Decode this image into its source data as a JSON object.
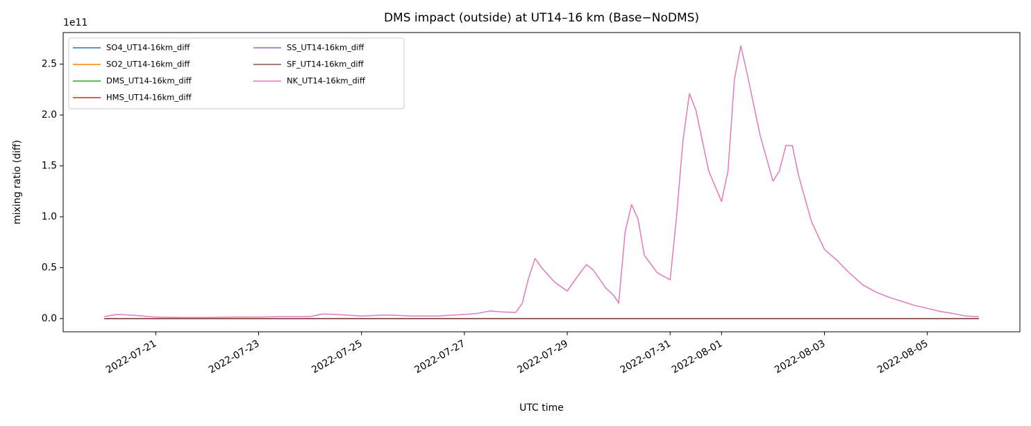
{
  "chart_data": {
    "type": "line",
    "title": "DMS impact (outside) at UT14–16 km (Base−NoDMS)",
    "x_label": "UTC time",
    "y_label": "mixing ratio (diff)",
    "y_offset_label": "1e11",
    "legend": "upper left",
    "legend_columns": 2,
    "grid": false,
    "xlim": [
      "2022-07-19 04:48",
      "2022-08-06 19:12"
    ],
    "xticks": [
      "2022-07-21",
      "2022-07-23",
      "2022-07-25",
      "2022-07-27",
      "2022-07-29",
      "2022-07-31",
      "2022-08-01",
      "2022-08-03",
      "2022-08-05"
    ],
    "ylim": [
      -0.13,
      2.81
    ],
    "yticks": [
      {
        "value": 0,
        "label": "0.0"
      },
      {
        "value": 0.5,
        "label": "0.5"
      },
      {
        "value": 1,
        "label": "1.0"
      },
      {
        "value": 1.5,
        "label": "1.5"
      },
      {
        "value": 2,
        "label": "2.0"
      },
      {
        "value": 2.5,
        "label": "2.5"
      }
    ],
    "x": [
      "2022-07-20 00:00",
      "2022-07-20 06:00",
      "2022-07-20 12:00",
      "2022-07-20 18:00",
      "2022-07-21 00:00",
      "2022-07-21 12:00",
      "2022-07-22 00:00",
      "2022-07-22 12:00",
      "2022-07-23 00:00",
      "2022-07-23 12:00",
      "2022-07-24 00:00",
      "2022-07-24 06:00",
      "2022-07-24 12:00",
      "2022-07-25 00:00",
      "2022-07-25 12:00",
      "2022-07-26 00:00",
      "2022-07-26 12:00",
      "2022-07-27 00:00",
      "2022-07-27 06:00",
      "2022-07-27 12:00",
      "2022-07-27 18:00",
      "2022-07-28 00:00",
      "2022-07-28 03:00",
      "2022-07-28 06:00",
      "2022-07-28 09:00",
      "2022-07-28 12:00",
      "2022-07-28 18:00",
      "2022-07-29 00:00",
      "2022-07-29 06:00",
      "2022-07-29 09:00",
      "2022-07-29 12:00",
      "2022-07-29 18:00",
      "2022-07-29 22:00",
      "2022-07-30 00:00",
      "2022-07-30 03:00",
      "2022-07-30 06:00",
      "2022-07-30 09:00",
      "2022-07-30 12:00",
      "2022-07-30 18:00",
      "2022-07-31 00:00",
      "2022-07-31 03:00",
      "2022-07-31 06:00",
      "2022-07-31 09:00",
      "2022-07-31 12:00",
      "2022-07-31 18:00",
      "2022-08-01 00:00",
      "2022-08-01 03:00",
      "2022-08-01 06:00",
      "2022-08-01 09:00",
      "2022-08-01 12:00",
      "2022-08-01 18:00",
      "2022-08-02 00:00",
      "2022-08-02 03:00",
      "2022-08-02 06:00",
      "2022-08-02 09:00",
      "2022-08-02 12:00",
      "2022-08-02 18:00",
      "2022-08-03 00:00",
      "2022-08-03 06:00",
      "2022-08-03 12:00",
      "2022-08-03 18:00",
      "2022-08-04 00:00",
      "2022-08-04 06:00",
      "2022-08-04 12:00",
      "2022-08-04 18:00",
      "2022-08-05 00:00",
      "2022-08-05 06:00",
      "2022-08-05 12:00",
      "2022-08-05 18:00",
      "2022-08-06 00:00"
    ],
    "series": [
      {
        "name": "SO4_UT14-16km_diff",
        "color": "#1f77b4",
        "values": [
          0,
          0,
          0,
          0,
          0,
          0,
          0,
          0,
          0,
          0,
          0,
          0,
          0,
          0,
          0,
          0,
          0,
          0,
          0,
          0,
          0,
          0,
          0,
          0,
          0,
          0,
          0,
          0,
          0,
          0,
          0,
          0,
          0,
          0,
          0,
          0,
          0,
          0,
          0,
          0,
          0,
          0,
          0,
          0,
          0,
          0,
          0,
          0,
          0,
          0,
          0,
          0,
          0,
          0,
          0,
          0,
          0,
          0,
          0,
          0,
          0,
          0,
          0,
          0,
          0,
          0,
          0,
          0,
          0,
          0
        ]
      },
      {
        "name": "SO2_UT14-16km_diff",
        "color": "#ff7f0e",
        "values": [
          0,
          0,
          0,
          0,
          0,
          0,
          0,
          0,
          0,
          0,
          0,
          0,
          0,
          0,
          0,
          0,
          0,
          0,
          0,
          0,
          0,
          0,
          0,
          0,
          0,
          0,
          0,
          0,
          0,
          0,
          0,
          0,
          0,
          0,
          0,
          0,
          0,
          0,
          0,
          0,
          0,
          0,
          0,
          0,
          0,
          0,
          0,
          0,
          0,
          0,
          0,
          0,
          0,
          0,
          0,
          0,
          0,
          0,
          0,
          0,
          0,
          0,
          0,
          0,
          0,
          0,
          0,
          0,
          0,
          0
        ]
      },
      {
        "name": "DMS_UT14-16km_diff",
        "color": "#2ca02c",
        "values": [
          0,
          0,
          0,
          0,
          0,
          0,
          0,
          0,
          0,
          0,
          0,
          0,
          0,
          0,
          0,
          0,
          0,
          0,
          0,
          0,
          0,
          0,
          0,
          0,
          0,
          0,
          0,
          0,
          0,
          0,
          0,
          0,
          0,
          0,
          0,
          0,
          0,
          0,
          0,
          0,
          0,
          0,
          0,
          0,
          0,
          0,
          0,
          0,
          0,
          0,
          0,
          0,
          0,
          0,
          0,
          0,
          0,
          0,
          0,
          0,
          0,
          0,
          0,
          0,
          0,
          0,
          0,
          0,
          0,
          0
        ]
      },
      {
        "name": "HMS_UT14-16km_diff",
        "color": "#d62728",
        "values": [
          0,
          0,
          0,
          0,
          0,
          0,
          0,
          0,
          0,
          0,
          0,
          0,
          0,
          0,
          0,
          0,
          0,
          0,
          0,
          0,
          0,
          0,
          0,
          0,
          0,
          0,
          0,
          0,
          0,
          0,
          0,
          0,
          0,
          0,
          0,
          0,
          0,
          0,
          0,
          0,
          0,
          0,
          0,
          0,
          0,
          0,
          0,
          0,
          0,
          0,
          0,
          0,
          0,
          0,
          0,
          0,
          0,
          0,
          0,
          0,
          0,
          0,
          0,
          0,
          0,
          0,
          0,
          0,
          0,
          0
        ]
      },
      {
        "name": "SS_UT14-16km_diff",
        "color": "#9467bd",
        "values": [
          0,
          0,
          0,
          0,
          0,
          0,
          0,
          0,
          0,
          0,
          0,
          0,
          0,
          0,
          0,
          0,
          0,
          0,
          0,
          0,
          0,
          0,
          0,
          0,
          0,
          0,
          0,
          0,
          0,
          0,
          0,
          0,
          0,
          0,
          0,
          0,
          0,
          0,
          0,
          0,
          0,
          0,
          0,
          0,
          0,
          0,
          0,
          0,
          0,
          0,
          0,
          0,
          0,
          0,
          0,
          0,
          0,
          0,
          0,
          0,
          0,
          0,
          0,
          0,
          0,
          0,
          0,
          0,
          0,
          0
        ]
      },
      {
        "name": "SF_UT14-16km_diff",
        "color": "#8c564b",
        "values": [
          0,
          0,
          0,
          0,
          0,
          0,
          0,
          0,
          0,
          0,
          0,
          0,
          0,
          0,
          0,
          0,
          0,
          0,
          0,
          0,
          0,
          0,
          0,
          0,
          0,
          0,
          0,
          0,
          0,
          0,
          0,
          0,
          0,
          0,
          0,
          0,
          0,
          0,
          0,
          0,
          0,
          0,
          0,
          0,
          0,
          0,
          0,
          0,
          0,
          0,
          0,
          0,
          0,
          0,
          0,
          0,
          0,
          0,
          0,
          0,
          0,
          0,
          0,
          0,
          0,
          0,
          0,
          0,
          0,
          0
        ]
      },
      {
        "name": "NK_UT14-16km_diff",
        "color": "#e377c2",
        "values": [
          0.02,
          0.04,
          0.035,
          0.025,
          0.015,
          0.01,
          0.01,
          0.015,
          0.015,
          0.02,
          0.02,
          0.045,
          0.04,
          0.025,
          0.035,
          0.025,
          0.025,
          0.04,
          0.05,
          0.075,
          0.065,
          0.06,
          0.15,
          0.4,
          0.59,
          0.5,
          0.36,
          0.27,
          0.45,
          0.53,
          0.48,
          0.3,
          0.22,
          0.15,
          0.85,
          1.12,
          0.98,
          0.62,
          0.45,
          0.38,
          1.0,
          1.75,
          2.21,
          2.05,
          1.45,
          1.15,
          1.45,
          2.35,
          2.68,
          2.4,
          1.8,
          1.35,
          1.45,
          1.7,
          1.7,
          1.4,
          0.95,
          0.68,
          0.57,
          0.44,
          0.33,
          0.26,
          0.21,
          0.17,
          0.13,
          0.1,
          0.07,
          0.05,
          0.025,
          0.02
        ]
      }
    ]
  }
}
